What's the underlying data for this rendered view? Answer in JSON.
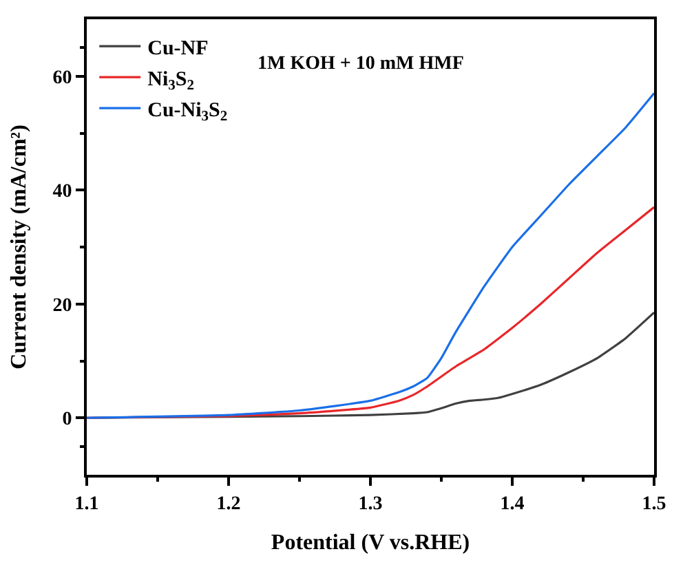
{
  "chart_data": {
    "type": "line",
    "xlabel": "Potential (V vs.RHE)",
    "ylabel": "Current density (mA/cm²)",
    "annotations": [
      "1M KOH + 10 mM HMF"
    ],
    "xlim": [
      1.1,
      1.5
    ],
    "xticks": [
      1.1,
      1.2,
      1.3,
      1.4,
      1.5
    ],
    "ylim": [
      -10,
      70
    ],
    "yticks": [
      0,
      20,
      40,
      60
    ],
    "legend": "top left",
    "line_style": "solid",
    "marker": "none",
    "series": [
      {
        "name": "Cu-NF",
        "color": "#404040",
        "x": [
          1.1,
          1.2,
          1.25,
          1.3,
          1.33,
          1.34,
          1.35,
          1.36,
          1.37,
          1.38,
          1.39,
          1.4,
          1.42,
          1.44,
          1.46,
          1.48,
          1.5
        ],
        "values": [
          0,
          0.2,
          0.3,
          0.5,
          0.8,
          1.0,
          1.7,
          2.5,
          3.0,
          3.2,
          3.5,
          4.2,
          5.8,
          8.0,
          10.5,
          14.0,
          18.5
        ]
      },
      {
        "name": "Ni$_{3}$S$_{2}$",
        "color": "#e8262a",
        "x": [
          1.1,
          1.2,
          1.25,
          1.3,
          1.32,
          1.33,
          1.34,
          1.36,
          1.38,
          1.4,
          1.42,
          1.44,
          1.46,
          1.48,
          1.5
        ],
        "values": [
          0,
          0.3,
          0.8,
          1.8,
          3.0,
          4.0,
          5.5,
          9.0,
          12.0,
          15.8,
          20.0,
          24.5,
          29.0,
          33.0,
          37.0
        ]
      },
      {
        "name": "Cu-Ni$_{3}$S$_{2}$",
        "color": "#1a6fe8",
        "x": [
          1.1,
          1.2,
          1.25,
          1.3,
          1.32,
          1.33,
          1.34,
          1.35,
          1.36,
          1.38,
          1.4,
          1.42,
          1.44,
          1.46,
          1.48,
          1.5
        ],
        "values": [
          0,
          0.5,
          1.3,
          3.0,
          4.5,
          5.5,
          7.0,
          10.5,
          15.0,
          23.0,
          30.0,
          35.5,
          41.0,
          46.0,
          51.0,
          57.0
        ]
      }
    ]
  }
}
